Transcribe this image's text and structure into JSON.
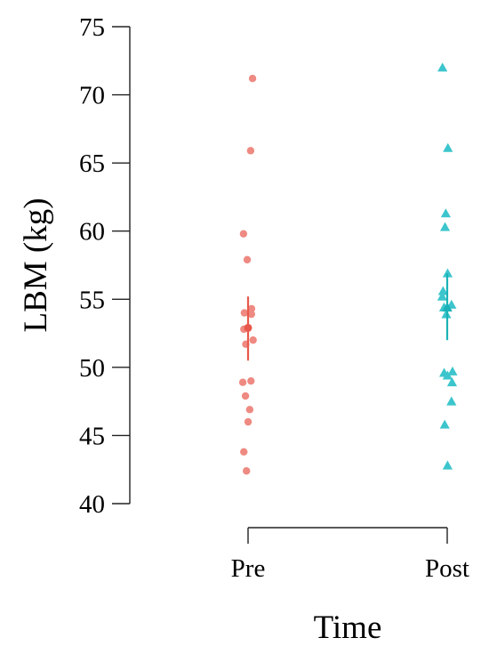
{
  "chart_data": {
    "type": "scatter",
    "subtype": "jittered strip plot with mean and error bars",
    "xlabel": "Time",
    "ylabel": "LBM (kg)",
    "categories": [
      "Pre",
      "Post"
    ],
    "ylim": [
      40,
      75
    ],
    "yticks": [
      40,
      45,
      50,
      55,
      60,
      65,
      70,
      75
    ],
    "ytick_labels": [
      "40",
      "45",
      "50",
      "55",
      "60",
      "65",
      "70",
      "75"
    ],
    "grid": false,
    "legend": "none",
    "series": [
      {
        "category": "Pre",
        "color": "#ee8a82",
        "mean_color": "#e8584c",
        "marker": "circle",
        "values": [
          71.2,
          65.9,
          59.8,
          57.9,
          54.3,
          54.0,
          53.9,
          52.8,
          52.0,
          51.7,
          49.0,
          48.9,
          47.9,
          46.9,
          46.0,
          43.8,
          42.4
        ],
        "mean": 52.9,
        "error": [
          50.5,
          55.2
        ]
      },
      {
        "category": "Post",
        "color": "#3cc5cc",
        "mean_color": "#1ab2b8",
        "marker": "triangle",
        "values": [
          72.0,
          66.1,
          61.3,
          60.3,
          56.9,
          55.6,
          55.2,
          54.6,
          54.4,
          53.9,
          49.7,
          49.6,
          49.4,
          48.9,
          47.5,
          45.8,
          42.8
        ],
        "mean": 54.4,
        "error": [
          52.0,
          56.9
        ]
      }
    ]
  }
}
